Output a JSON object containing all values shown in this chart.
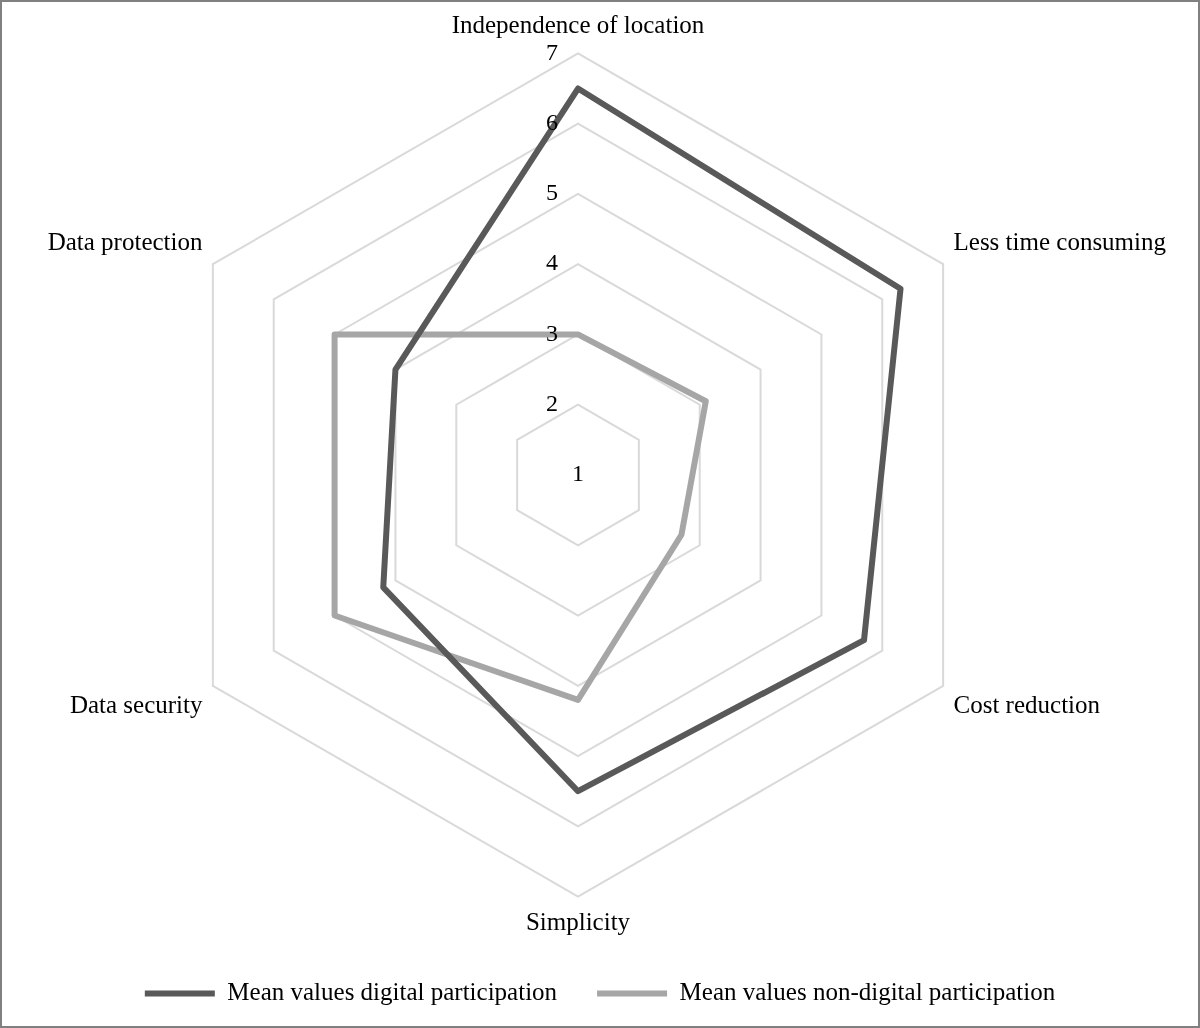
{
  "chart_data": {
    "type": "radar",
    "categories": [
      "Independence of location",
      "Less time consuming",
      "Cost reduction",
      "Simplicity",
      "Data security",
      "Data protection"
    ],
    "series": [
      {
        "name": "Mean values digital participation",
        "color": "#595959",
        "values": [
          6.5,
          6.3,
          5.7,
          5.5,
          4.2,
          4.0
        ]
      },
      {
        "name": "Mean values non-digital participation",
        "color": "#a6a6a6",
        "values": [
          3.0,
          3.1,
          2.7,
          4.2,
          5.0,
          5.0
        ]
      }
    ],
    "ylim": [
      1,
      7
    ],
    "yticks": [
      1,
      2,
      3,
      4,
      5,
      6,
      7
    ],
    "grid": true,
    "legend": "bottom",
    "marker": "none"
  }
}
